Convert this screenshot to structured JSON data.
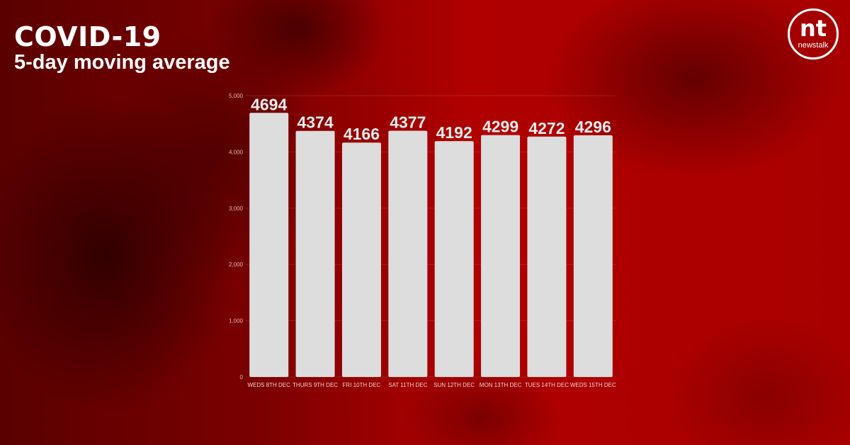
{
  "title": "COVID-19",
  "subtitle": "5-day moving average",
  "logo": {
    "mark": "nt",
    "wordmark": "newstalk"
  },
  "colors": {
    "bar": "#dddddd",
    "background": "#b00000"
  },
  "chart_data": {
    "type": "bar",
    "title": "",
    "xlabel": "",
    "ylabel": "",
    "ylim": [
      0,
      5000
    ],
    "yticks": [
      "0",
      "1,000",
      "2,000",
      "3,000",
      "4,000",
      "5,000"
    ],
    "ytick_values": [
      0,
      1000,
      2000,
      3000,
      4000,
      5000
    ],
    "grid": true,
    "categories": [
      "WEDS 8TH DEC",
      "THURS 9TH DEC",
      "FRI 10TH DEC",
      "SAT 11TH DEC",
      "SUN 12TH DEC",
      "MON 13TH DEC",
      "TUES 14TH DEC",
      "WEDS 15TH DEC"
    ],
    "values": [
      4694,
      4374,
      4166,
      4377,
      4192,
      4299,
      4272,
      4296
    ],
    "data_labels": [
      "4694",
      "4374",
      "4166",
      "4377",
      "4192",
      "4299",
      "4272",
      "4296"
    ]
  }
}
